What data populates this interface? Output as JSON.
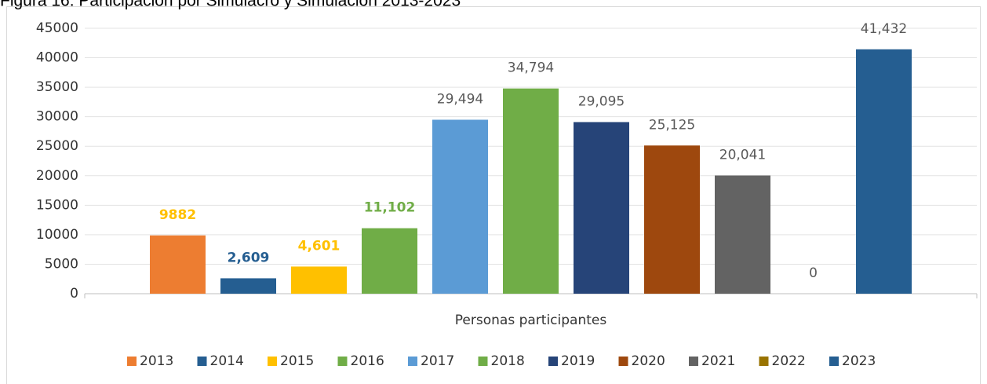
{
  "chart_data": {
    "type": "bar",
    "title": "Figura 16. Participación por Simulacro y Simulación 2013-2023",
    "categories": [
      "Personas participantes"
    ],
    "ylim": [
      0,
      45000
    ],
    "yticks": [
      0,
      5000,
      10000,
      15000,
      20000,
      25000,
      30000,
      35000,
      40000,
      45000
    ],
    "grid": true,
    "legend": "bottom",
    "series": [
      {
        "name": "2013",
        "color": "#ed7d31",
        "values": [
          9882
        ],
        "label_color": "#ffc000"
      },
      {
        "name": "2014",
        "color": "#255e91",
        "values": [
          2609
        ],
        "value_labels": [
          "2,609"
        ],
        "label_color": "#255e91"
      },
      {
        "name": "2015",
        "color": "#ffc000",
        "values": [
          4601
        ],
        "value_labels": [
          "4,601"
        ],
        "label_color": "#ffc000"
      },
      {
        "name": "2016",
        "color": "#70ad47",
        "values": [
          11102
        ],
        "value_labels": [
          "11,102"
        ],
        "label_color": "#70ad47"
      },
      {
        "name": "2017",
        "color": "#5b9bd5",
        "values": [
          29494
        ],
        "value_labels": [
          "29,494"
        ]
      },
      {
        "name": "2018",
        "color": "#70ad47",
        "values": [
          34794
        ],
        "value_labels": [
          "34,794"
        ]
      },
      {
        "name": "2019",
        "color": "#264478",
        "values": [
          29095
        ],
        "value_labels": [
          "29,095"
        ]
      },
      {
        "name": "2020",
        "color": "#9e480e",
        "values": [
          25125
        ],
        "value_labels": [
          "25,125"
        ]
      },
      {
        "name": "2021",
        "color": "#636363",
        "values": [
          20041
        ],
        "value_labels": [
          "20,041"
        ]
      },
      {
        "name": "2022",
        "color": "#997300",
        "values": [
          0
        ]
      },
      {
        "name": "2023",
        "color": "#255e91",
        "values": [
          41432
        ],
        "value_labels": [
          "41,432"
        ]
      }
    ]
  }
}
